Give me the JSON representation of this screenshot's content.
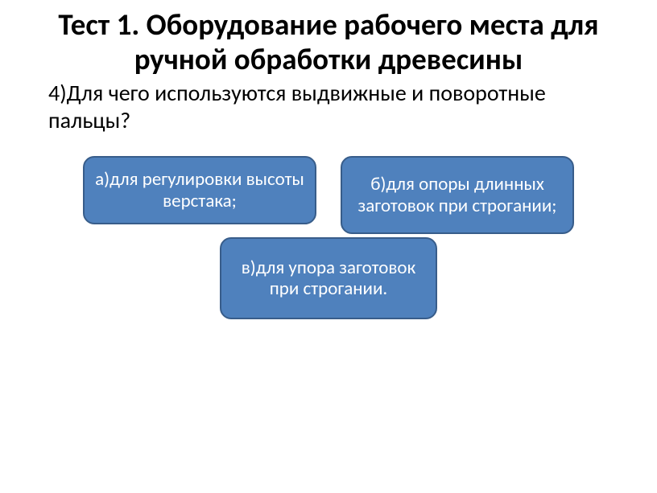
{
  "title": "Тест 1. Оборудование рабочего места для ручной обработки древесины",
  "question": "4)Для чего используются выдвижные и поворотные пальцы?",
  "options": {
    "a": "а)для регулировки высоты верстака;",
    "b": "б)для опоры длинных заготовок при строгании;",
    "c": "в)для упора заготовок при строгании."
  },
  "colors": {
    "option_fill": "#4f81bd",
    "option_border": "#385d8a",
    "option_text": "#ffffff",
    "background": "#ffffff",
    "text": "#000000"
  },
  "typography": {
    "title_fontsize": 37,
    "title_weight": "bold",
    "question_fontsize": 28,
    "option_fontsize": 23,
    "font_family": "Calibri"
  },
  "layout": {
    "option_border_radius": 14,
    "option_border_width": 2
  }
}
